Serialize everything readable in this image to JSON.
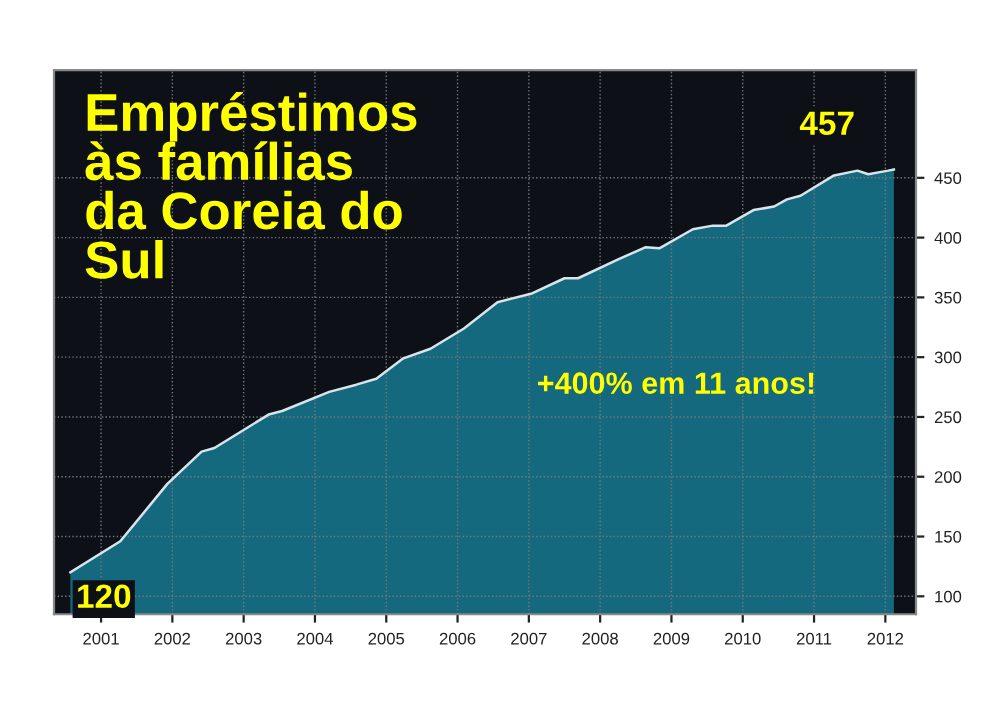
{
  "chart_data": {
    "type": "area",
    "title": "Empréstimos às famílias da Coreia do Sul",
    "x": [
      2001.07,
      2001.77,
      2002.43,
      2002.91,
      2003.09,
      2003.85,
      2004.04,
      2004.7,
      2005.08,
      2005.36,
      2005.74,
      2006.12,
      2006.59,
      2007.06,
      2007.53,
      2008.0,
      2008.19,
      2008.76,
      2009.14,
      2009.33,
      2009.8,
      2010.08,
      2010.27,
      2010.65,
      2010.94,
      2011.12,
      2011.31,
      2011.78,
      2012.11,
      2012.26,
      2012.54,
      2012.62
    ],
    "series": [
      {
        "color": "#16738a",
        "values": [
          120,
          146,
          194,
          221,
          224,
          252,
          255,
          271,
          277,
          282,
          299,
          307,
          324,
          346,
          353,
          366,
          366,
          382,
          392,
          391,
          407,
          410,
          410,
          423,
          426,
          432,
          435,
          452,
          456,
          453,
          456,
          457
        ]
      }
    ],
    "xlim": [
      2000.84,
      2012.93
    ],
    "ylim": [
      85,
      540
    ],
    "xticks": [
      {
        "value": 2001.5,
        "label": "2001"
      },
      {
        "value": 2002.5,
        "label": "2002"
      },
      {
        "value": 2003.5,
        "label": "2003"
      },
      {
        "value": 2004.5,
        "label": "2004"
      },
      {
        "value": 2005.5,
        "label": "2005"
      },
      {
        "value": 2006.5,
        "label": "2006"
      },
      {
        "value": 2007.5,
        "label": "2007"
      },
      {
        "value": 2008.5,
        "label": "2008"
      },
      {
        "value": 2009.5,
        "label": "2009"
      },
      {
        "value": 2010.5,
        "label": "2010"
      },
      {
        "value": 2011.5,
        "label": "2011"
      },
      {
        "value": 2012.5,
        "label": "2012"
      }
    ],
    "yticks": [
      100,
      150,
      200,
      250,
      300,
      350,
      400,
      450
    ],
    "grid": true,
    "annotations": [
      {
        "text": "120",
        "x": 2001.07,
        "y": 120
      },
      {
        "text": "457",
        "x": 2012.62,
        "y": 457
      },
      "+400% em 11 anos!"
    ]
  }
}
